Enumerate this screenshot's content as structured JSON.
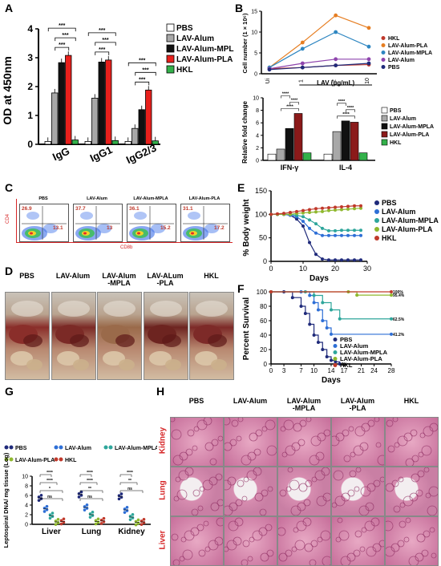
{
  "panel_labels": {
    "A": "A",
    "B": "B",
    "C": "C",
    "D": "D",
    "E": "E",
    "F": "F",
    "G": "G",
    "H": "H"
  },
  "chart_data": [
    {
      "panel": "A",
      "type": "bar",
      "ylabel": "OD at 450nm",
      "ylim": [
        0,
        4
      ],
      "yticks": [
        "0",
        "1",
        "2",
        "3",
        "4"
      ],
      "categories": [
        "IgG",
        "IgG1",
        "IgG2/3"
      ],
      "series": [
        {
          "name": "PBS",
          "color": "#ffffff",
          "values": [
            0.1,
            0.1,
            0.1
          ]
        },
        {
          "name": "LAV-Alum",
          "color": "#a8a8a8",
          "values": [
            1.78,
            1.6,
            0.55
          ]
        },
        {
          "name": "LAV-Alum-MPLA",
          "color": "#111111",
          "values": [
            2.83,
            2.85,
            1.2
          ]
        },
        {
          "name": "LAV-Alum-PLA",
          "color": "#e8201c",
          "values": [
            3.08,
            2.92,
            1.88
          ]
        },
        {
          "name": "HKL",
          "color": "#33b14a",
          "values": [
            0.15,
            0.13,
            0.12
          ]
        }
      ],
      "significance": [
        "***",
        "***",
        "***",
        "***",
        "***",
        "***",
        "***",
        "***",
        "***"
      ],
      "legend_position": "top-right"
    },
    {
      "panel": "B-top",
      "type": "line",
      "ylabel": "Cell number (1 × 10⁶)",
      "xlabel": "LAV (μg/mL)",
      "x": [
        "Ui",
        "1",
        "2",
        "10"
      ],
      "ylim": [
        0,
        15
      ],
      "yticks": [
        "0",
        "5",
        "10",
        "15"
      ],
      "series": [
        {
          "name": "HKL",
          "color": "#c0392b",
          "values": [
            1.2,
            1.5,
            2.0,
            2.2
          ]
        },
        {
          "name": "LAV-Alum-PLA",
          "color": "#e67e22",
          "values": [
            1.5,
            7.5,
            14.0,
            11.0
          ]
        },
        {
          "name": "LAV-Alum-MPLA",
          "color": "#2e86c1",
          "values": [
            1.5,
            6.0,
            10.0,
            6.5
          ]
        },
        {
          "name": "LAV-Alum",
          "color": "#8e44ad",
          "values": [
            1.2,
            2.5,
            3.5,
            3.5
          ]
        },
        {
          "name": "PBS",
          "color": "#1f2a7a",
          "values": [
            1.0,
            1.5,
            2.0,
            2.5
          ]
        }
      ]
    },
    {
      "panel": "B-bottom",
      "type": "bar",
      "ylabel": "Relative fold change",
      "ylim": [
        0,
        10
      ],
      "yticks": [
        "0",
        "2",
        "4",
        "6",
        "8",
        "10"
      ],
      "categories": [
        "IFN-γ",
        "IL-4"
      ],
      "series": [
        {
          "name": "PBS",
          "color": "#ffffff",
          "values": [
            1.0,
            1.0
          ]
        },
        {
          "name": "LAV-Alum",
          "color": "#a8a8a8",
          "values": [
            1.8,
            4.6
          ]
        },
        {
          "name": "LAV-Alum-MPLA",
          "color": "#111111",
          "values": [
            5.1,
            6.3
          ]
        },
        {
          "name": "LAV-Alum-PLA",
          "color": "#8b1a1a",
          "values": [
            7.5,
            6.1
          ]
        },
        {
          "name": "HKL",
          "color": "#33b14a",
          "values": [
            1.2,
            1.2
          ]
        }
      ],
      "significance": [
        "****",
        "****",
        "****",
        "****",
        "****",
        "****",
        "ns"
      ]
    },
    {
      "panel": "E",
      "type": "line",
      "ylabel": "% Body weight",
      "xlabel": "Days",
      "ylim": [
        0,
        150
      ],
      "yticks": [
        "0",
        "50",
        "100",
        "150"
      ],
      "xlim": [
        0,
        30
      ],
      "xticks": [
        "0",
        "10",
        "20",
        "30"
      ],
      "series": [
        {
          "name": "PBS",
          "color": "#1f2a7a",
          "x": [
            0,
            2,
            4,
            6,
            8,
            10,
            12,
            14,
            16,
            18,
            20,
            22,
            24,
            26,
            28
          ],
          "values": [
            100,
            100,
            100,
            98,
            90,
            75,
            40,
            15,
            5,
            3,
            3,
            3,
            3,
            3,
            3
          ]
        },
        {
          "name": "LAV-Alum",
          "color": "#2e6fd6",
          "x": [
            0,
            2,
            4,
            6,
            8,
            10,
            12,
            14,
            16,
            18,
            20,
            22,
            24,
            26,
            28
          ],
          "values": [
            100,
            100,
            100,
            98,
            95,
            85,
            70,
            60,
            55,
            55,
            55,
            55,
            55,
            55,
            55
          ]
        },
        {
          "name": "LAV-Alum-MPLA",
          "color": "#2ea69b",
          "x": [
            0,
            2,
            4,
            6,
            8,
            10,
            12,
            14,
            16,
            18,
            20,
            22,
            24,
            26,
            28
          ],
          "values": [
            100,
            100,
            100,
            100,
            98,
            95,
            88,
            80,
            70,
            65,
            65,
            66,
            66,
            66,
            66
          ]
        },
        {
          "name": "LAV-Alum-PLA",
          "color": "#8fb82e",
          "x": [
            0,
            2,
            4,
            6,
            8,
            10,
            12,
            14,
            16,
            18,
            20,
            22,
            24,
            26,
            28
          ],
          "values": [
            100,
            100,
            100,
            100,
            102,
            103,
            104,
            105,
            106,
            108,
            109,
            110,
            111,
            112,
            113
          ]
        },
        {
          "name": "HKL",
          "color": "#c0392b",
          "x": [
            0,
            2,
            4,
            6,
            8,
            10,
            12,
            14,
            16,
            18,
            20,
            22,
            24,
            26,
            28
          ],
          "values": [
            100,
            101,
            102,
            104,
            106,
            108,
            110,
            112,
            113,
            114,
            115,
            116,
            117,
            118,
            118
          ]
        }
      ]
    },
    {
      "panel": "F",
      "type": "line",
      "ylabel": "Percent Survival",
      "xlabel": "Days",
      "ylim": [
        0,
        100
      ],
      "yticks": [
        "0",
        "20",
        "40",
        "60",
        "80",
        "100"
      ],
      "xlim": [
        0,
        28
      ],
      "xticks": [
        "0",
        "3",
        "7",
        "10",
        "14",
        "17",
        "21",
        "24",
        "28"
      ],
      "series": [
        {
          "name": "PBS",
          "color": "#1f2a7a",
          "x": [
            0,
            3,
            5,
            7,
            8,
            9,
            10,
            11,
            12,
            13,
            14,
            15,
            16
          ],
          "values": [
            100,
            100,
            92,
            80,
            70,
            55,
            40,
            30,
            20,
            10,
            5,
            3,
            0
          ],
          "end_label": "0%"
        },
        {
          "name": "LAV-Alum",
          "color": "#2e6fd6",
          "x": [
            0,
            7,
            9,
            10,
            11,
            12,
            13,
            14,
            28
          ],
          "values": [
            100,
            100,
            95,
            85,
            75,
            60,
            50,
            41.2,
            41.2
          ],
          "end_label": "41.2%"
        },
        {
          "name": "LAV-Alum-MPLA",
          "color": "#2ea69b",
          "x": [
            0,
            8,
            10,
            12,
            14,
            16,
            28
          ],
          "values": [
            100,
            100,
            95,
            85,
            75,
            62.5,
            62.5
          ],
          "end_label": "62.5%"
        },
        {
          "name": "LAV-Alum-PLA",
          "color": "#8fb82e",
          "x": [
            0,
            18,
            20,
            28
          ],
          "values": [
            100,
            100,
            95.4,
            95.4
          ],
          "end_label": "95.4%"
        },
        {
          "name": "HKL",
          "color": "#c0392b",
          "x": [
            0,
            28
          ],
          "values": [
            100,
            100
          ],
          "end_label": "100%"
        }
      ]
    },
    {
      "panel": "G",
      "type": "scatter",
      "ylabel": "Leptospiral DNA/ mg tissue (Log)",
      "ylim": [
        0,
        10
      ],
      "yticks": [
        "0",
        "2",
        "4",
        "6",
        "8",
        "10"
      ],
      "categories": [
        "Liver",
        "Lung",
        "Kidney"
      ],
      "series": [
        {
          "name": "PBS",
          "color": "#1f2a7a",
          "values": [
            5.5,
            6.2,
            5.8
          ]
        },
        {
          "name": "LAV-Alum",
          "color": "#2e6fd6",
          "values": [
            3.2,
            3.5,
            3.0
          ]
        },
        {
          "name": "LAV-Alum-MPLA",
          "color": "#2ea69b",
          "values": [
            1.8,
            2.0,
            1.5
          ]
        },
        {
          "name": "LAV-Alum-PLA",
          "color": "#8fb82e",
          "values": [
            0.5,
            0.6,
            0.4
          ]
        },
        {
          "name": "HKL",
          "color": "#c0392b",
          "values": [
            0.6,
            0.7,
            0.5
          ]
        }
      ],
      "significance": [
        "****",
        "****",
        "*",
        "ns",
        "****",
        "****",
        "**",
        "ns",
        "****",
        "**",
        "ns"
      ]
    }
  ],
  "panelC": {
    "titles": [
      "PBS",
      "LAV-Alum",
      "LAV-Alum-MPLA",
      "LAV-Alum-PLA"
    ],
    "ul": [
      "26.9",
      "37.7",
      "36.1",
      "31.1"
    ],
    "lr": [
      "13.1",
      "13",
      "15.2",
      "17.2"
    ],
    "yaxis": "CD4",
    "xaxis": "CD8b"
  },
  "panelD": {
    "titles": [
      "PBS",
      "LAV-Alum",
      "LAV-Alum\n-MPLA",
      "LAV-ALum\n-PLA",
      "HKL"
    ]
  },
  "panelH": {
    "cols": [
      "PBS",
      "LAV-Alum",
      "LAV-Alum\n-MPLA",
      "LAV-Alum\n-PLA",
      "HKL"
    ],
    "rows": [
      "Kidney",
      "Lung",
      "Liver"
    ]
  },
  "colors": {
    "panel_red": "#d62728",
    "tissue_pink": "#e8a9c4",
    "tissue_dark": "#9b3a6e"
  }
}
